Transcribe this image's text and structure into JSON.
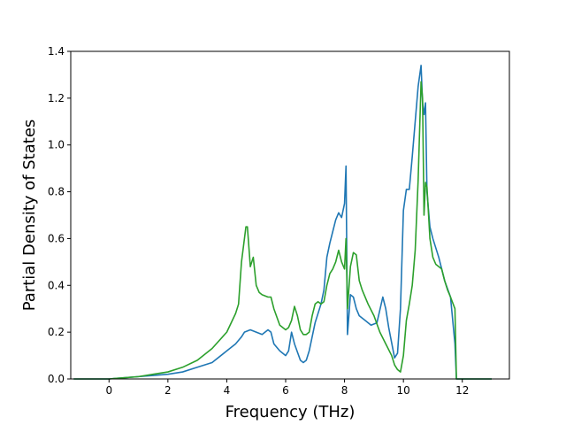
{
  "chart_data": {
    "type": "line",
    "xlabel": "Frequency (THz)",
    "ylabel": "Partial Density of States",
    "xlim": [
      -1.3,
      13.6
    ],
    "ylim": [
      0.0,
      1.4
    ],
    "x_ticks": [
      0,
      2,
      4,
      6,
      8,
      10,
      12
    ],
    "x_tick_labels": [
      "0",
      "2",
      "4",
      "6",
      "8",
      "10",
      "12"
    ],
    "y_ticks": [
      0.0,
      0.2,
      0.4,
      0.6,
      0.8,
      1.0,
      1.2,
      1.4
    ],
    "y_tick_labels": [
      "0.0",
      "0.2",
      "0.4",
      "0.6",
      "0.8",
      "1.0",
      "1.2",
      "1.4"
    ],
    "grid": false,
    "legend": "none",
    "series": [
      {
        "color": "#1f77b4",
        "x": [
          -1.2,
          0.0,
          0.5,
          1.0,
          1.5,
          2.0,
          2.5,
          3.0,
          3.5,
          4.0,
          4.3,
          4.5,
          4.6,
          4.8,
          5.0,
          5.2,
          5.4,
          5.5,
          5.6,
          5.8,
          6.0,
          6.1,
          6.2,
          6.3,
          6.5,
          6.6,
          6.7,
          6.8,
          7.0,
          7.2,
          7.3,
          7.4,
          7.5,
          7.6,
          7.7,
          7.8,
          7.9,
          8.0,
          8.05,
          8.1,
          8.2,
          8.3,
          8.4,
          8.5,
          8.7,
          8.9,
          9.1,
          9.3,
          9.4,
          9.5,
          9.7,
          9.8,
          9.9,
          10.0,
          10.1,
          10.2,
          10.3,
          10.4,
          10.5,
          10.6,
          10.65,
          10.7,
          10.75,
          10.8,
          10.9,
          11.0,
          11.2,
          11.4,
          11.6,
          11.75,
          11.8,
          12.0,
          13.0
        ],
        "y": [
          0.0,
          0.0,
          0.005,
          0.01,
          0.015,
          0.02,
          0.03,
          0.05,
          0.07,
          0.12,
          0.15,
          0.18,
          0.2,
          0.21,
          0.2,
          0.19,
          0.21,
          0.2,
          0.15,
          0.12,
          0.1,
          0.12,
          0.2,
          0.15,
          0.08,
          0.07,
          0.08,
          0.12,
          0.24,
          0.32,
          0.38,
          0.52,
          0.58,
          0.63,
          0.68,
          0.71,
          0.69,
          0.75,
          0.91,
          0.19,
          0.36,
          0.35,
          0.3,
          0.27,
          0.25,
          0.23,
          0.24,
          0.35,
          0.3,
          0.22,
          0.09,
          0.11,
          0.3,
          0.72,
          0.81,
          0.81,
          0.95,
          1.1,
          1.25,
          1.34,
          1.18,
          1.13,
          1.18,
          0.8,
          0.65,
          0.6,
          0.52,
          0.42,
          0.35,
          0.15,
          0.0,
          0.0,
          0.0
        ]
      },
      {
        "color": "#2ca02c",
        "x": [
          -1.2,
          0.0,
          0.5,
          1.0,
          1.5,
          2.0,
          2.5,
          3.0,
          3.5,
          4.0,
          4.3,
          4.4,
          4.5,
          4.6,
          4.65,
          4.7,
          4.8,
          4.9,
          5.0,
          5.1,
          5.2,
          5.4,
          5.5,
          5.6,
          5.8,
          6.0,
          6.1,
          6.2,
          6.3,
          6.4,
          6.5,
          6.6,
          6.7,
          6.8,
          6.9,
          7.0,
          7.1,
          7.2,
          7.3,
          7.4,
          7.5,
          7.6,
          7.7,
          7.8,
          7.9,
          8.0,
          8.05,
          8.1,
          8.2,
          8.3,
          8.4,
          8.5,
          8.6,
          8.8,
          9.0,
          9.2,
          9.4,
          9.6,
          9.7,
          9.8,
          9.9,
          10.0,
          10.1,
          10.2,
          10.3,
          10.4,
          10.5,
          10.6,
          10.65,
          10.7,
          10.75,
          10.8,
          10.9,
          11.0,
          11.1,
          11.2,
          11.3,
          11.4,
          11.5,
          11.6,
          11.75,
          11.8,
          12.0,
          13.0
        ],
        "y": [
          0.0,
          0.0,
          0.005,
          0.01,
          0.02,
          0.03,
          0.05,
          0.08,
          0.13,
          0.2,
          0.28,
          0.32,
          0.5,
          0.6,
          0.65,
          0.65,
          0.48,
          0.52,
          0.4,
          0.37,
          0.36,
          0.35,
          0.35,
          0.3,
          0.23,
          0.21,
          0.22,
          0.25,
          0.31,
          0.27,
          0.21,
          0.19,
          0.19,
          0.2,
          0.27,
          0.32,
          0.33,
          0.32,
          0.33,
          0.4,
          0.45,
          0.47,
          0.5,
          0.55,
          0.5,
          0.47,
          0.6,
          0.3,
          0.48,
          0.54,
          0.53,
          0.42,
          0.38,
          0.32,
          0.27,
          0.2,
          0.15,
          0.1,
          0.06,
          0.04,
          0.03,
          0.1,
          0.25,
          0.32,
          0.4,
          0.55,
          0.85,
          1.27,
          1.2,
          0.7,
          0.84,
          0.82,
          0.6,
          0.52,
          0.49,
          0.48,
          0.47,
          0.42,
          0.38,
          0.35,
          0.3,
          0.0,
          0.0,
          0.0
        ]
      }
    ]
  }
}
